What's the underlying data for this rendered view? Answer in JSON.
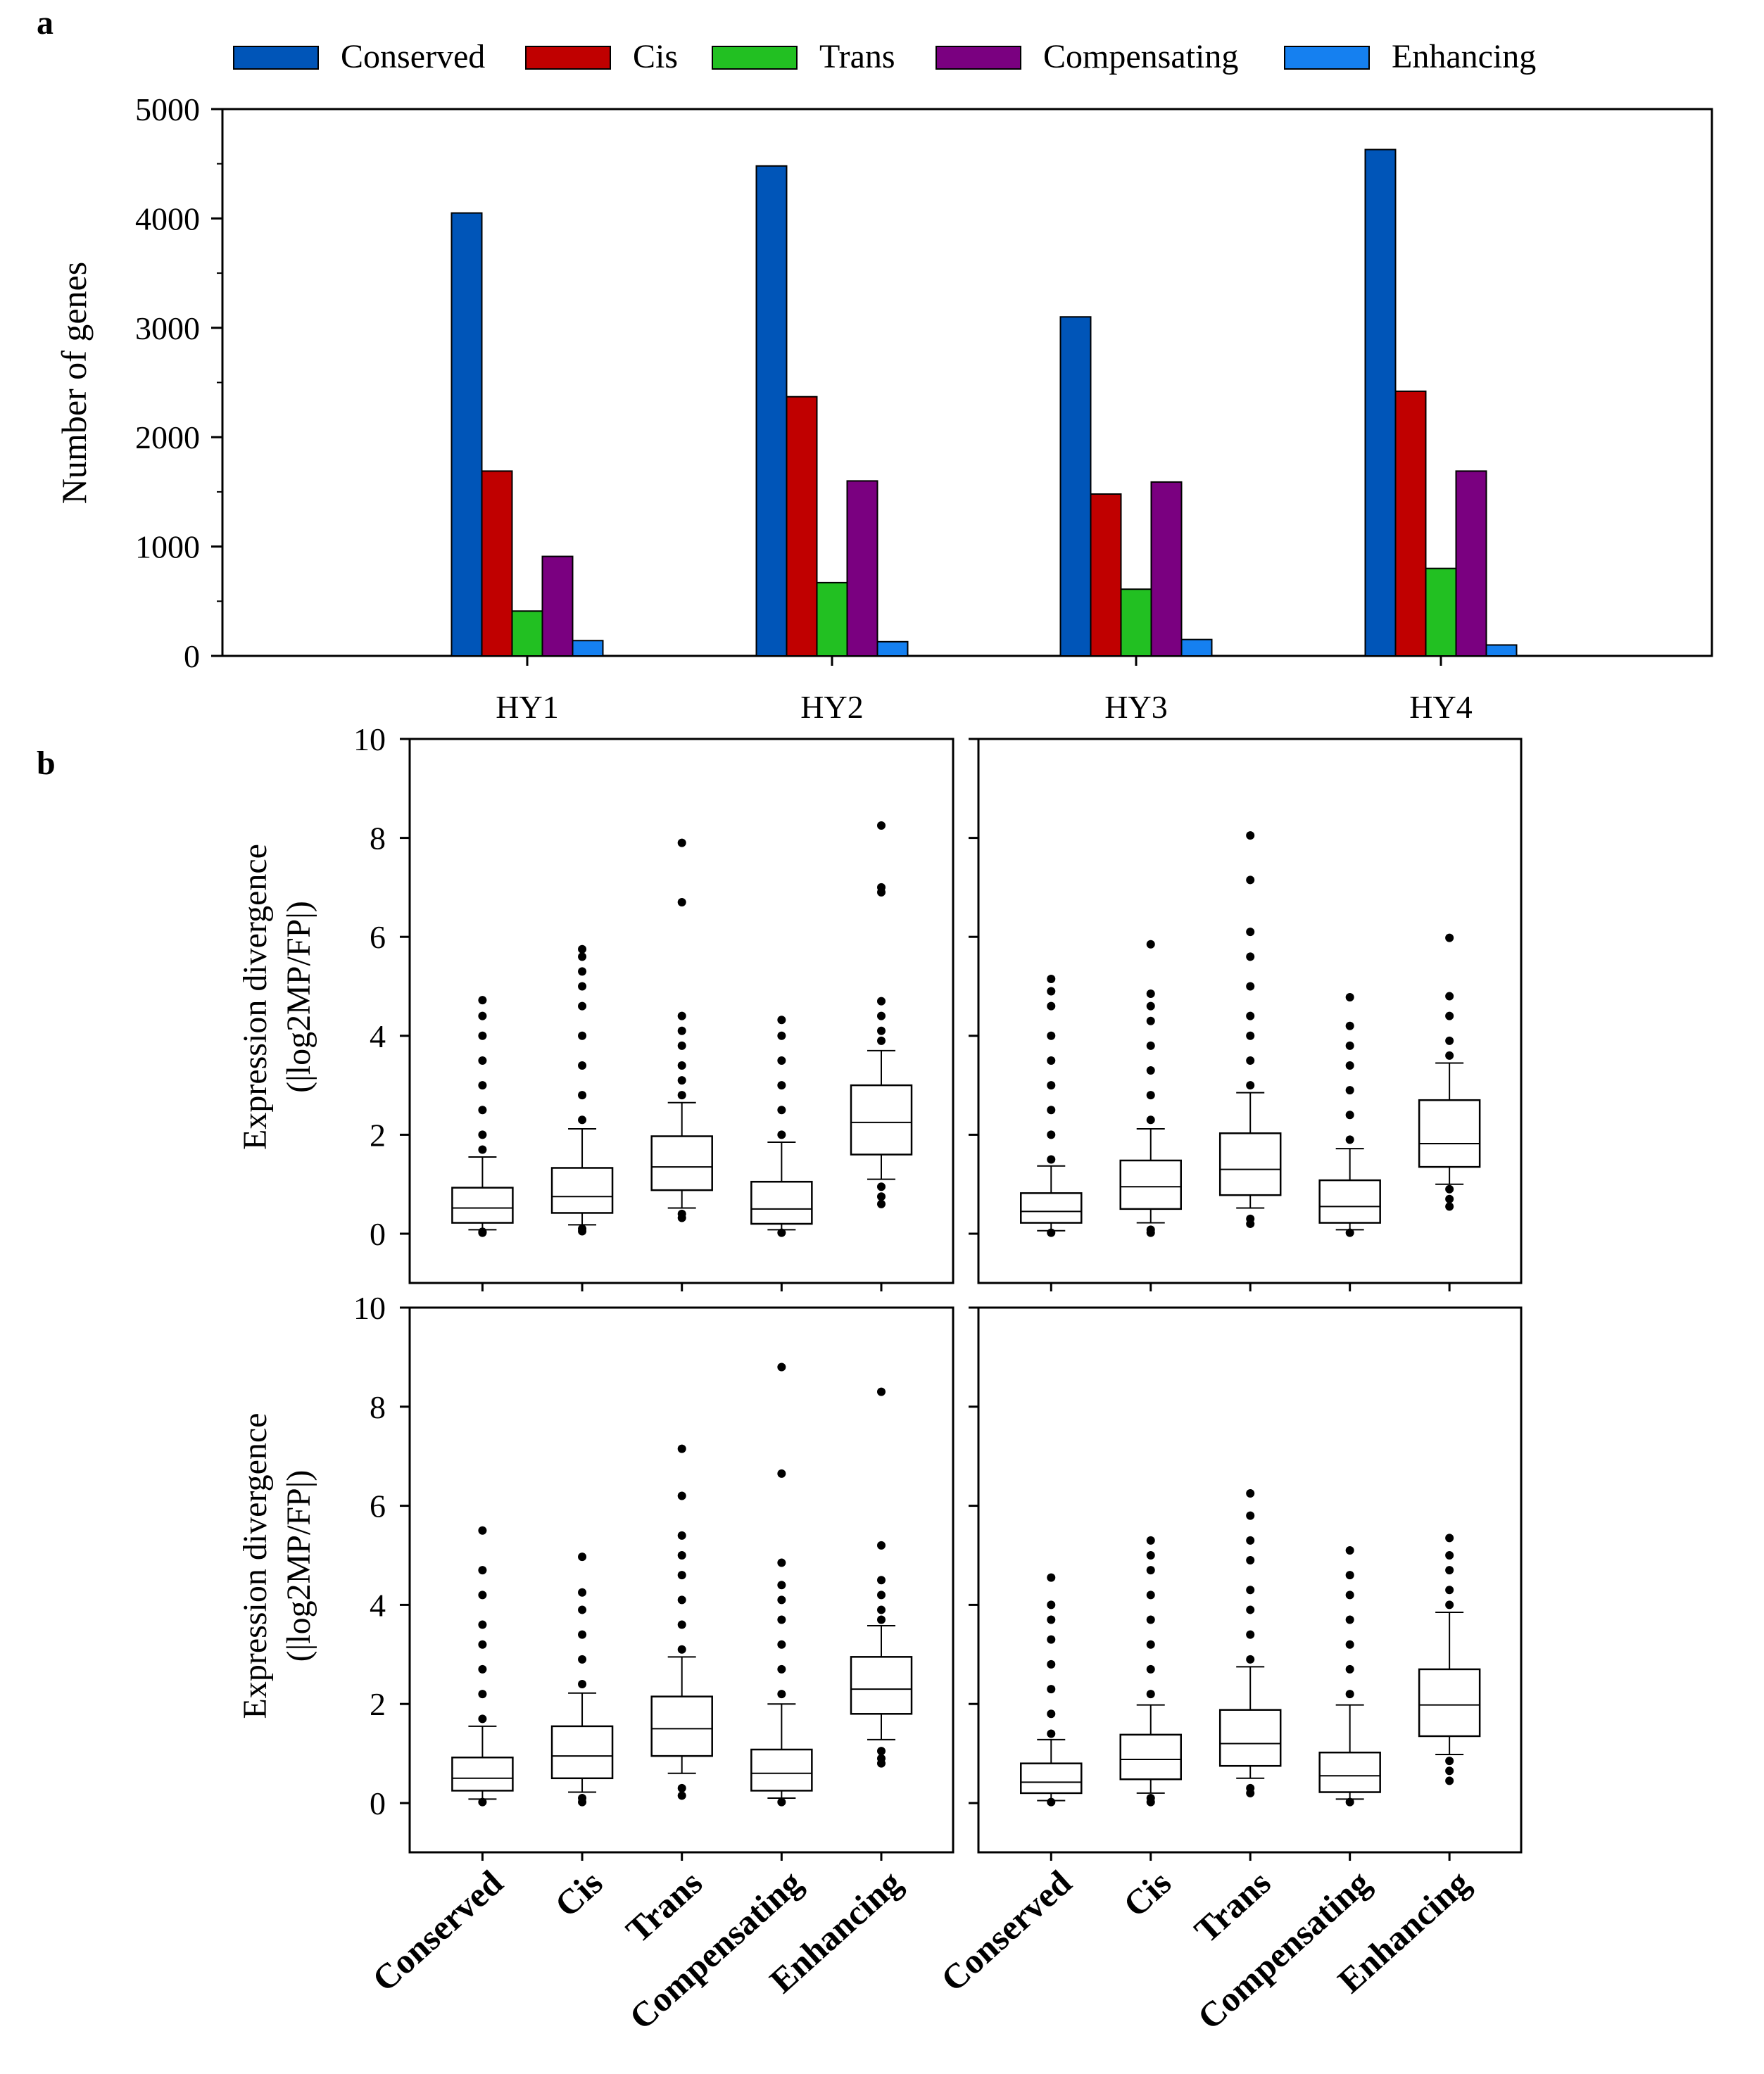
{
  "panel_a_label": "a",
  "panel_b_label": "b",
  "legend": [
    "Conserved",
    "Cis",
    "Trans",
    "Compensating",
    "Enhancing"
  ],
  "colors": {
    "Conserved": "#0055b8",
    "Cis": "#c00000",
    "Trans": "#22c022",
    "Compensating": "#7a0080",
    "Enhancing": "#1580f0"
  },
  "chart_data": [
    {
      "type": "bar",
      "title": "",
      "xlabel": "",
      "ylabel": "Number of genes",
      "categories": [
        "HY1",
        "HY2",
        "HY3",
        "HY4"
      ],
      "ylim": [
        0,
        5000
      ],
      "yticks": [
        0,
        1000,
        2000,
        3000,
        4000,
        5000
      ],
      "series": [
        {
          "name": "Conserved",
          "values": [
            4050,
            4480,
            3100,
            4630
          ]
        },
        {
          "name": "Cis",
          "values": [
            1690,
            2370,
            1480,
            2420
          ]
        },
        {
          "name": "Trans",
          "values": [
            410,
            670,
            610,
            800
          ]
        },
        {
          "name": "Compensating",
          "values": [
            910,
            1600,
            1590,
            1690
          ]
        },
        {
          "name": "Enhancing",
          "values": [
            140,
            130,
            150,
            100
          ]
        }
      ],
      "legend_position": "top"
    },
    {
      "type": "box",
      "ylabel": "Expression divergence (|log2MP/FP|)",
      "categories": [
        "Conserved",
        "Cis",
        "Trans",
        "Compensating",
        "Enhancing"
      ],
      "ylim": [
        0,
        10
      ],
      "yticks": [
        0,
        2,
        4,
        6,
        8,
        10
      ],
      "boxes": [
        {
          "q1": 0.22,
          "median": 0.52,
          "q3": 0.93,
          "lower_whisker": 0.08,
          "upper_whisker": 1.55,
          "outliers": [
            0.02,
            0.04,
            1.7,
            2.0,
            2.5,
            3.0,
            3.5,
            4.0,
            4.4,
            4.72
          ]
        },
        {
          "q1": 0.42,
          "median": 0.75,
          "q3": 1.33,
          "lower_whisker": 0.18,
          "upper_whisker": 2.12,
          "outliers": [
            0.05,
            0.1,
            2.3,
            2.8,
            3.4,
            4.0,
            4.6,
            5.0,
            5.3,
            5.6,
            5.75
          ]
        },
        {
          "q1": 0.88,
          "median": 1.35,
          "q3": 1.97,
          "lower_whisker": 0.52,
          "upper_whisker": 2.65,
          "outliers": [
            0.32,
            0.4,
            2.8,
            3.1,
            3.4,
            3.8,
            4.1,
            4.4,
            6.7,
            7.9
          ]
        },
        {
          "q1": 0.2,
          "median": 0.5,
          "q3": 1.05,
          "lower_whisker": 0.08,
          "upper_whisker": 1.85,
          "outliers": [
            0.02,
            2.0,
            2.5,
            3.0,
            3.5,
            4.0,
            4.32
          ]
        },
        {
          "q1": 1.6,
          "median": 2.25,
          "q3": 3.0,
          "lower_whisker": 1.1,
          "upper_whisker": 3.7,
          "outliers": [
            0.6,
            0.75,
            0.95,
            3.9,
            4.1,
            4.4,
            4.7,
            6.9,
            7.0,
            8.25
          ]
        }
      ]
    },
    {
      "type": "box",
      "categories": [
        "Conserved",
        "Cis",
        "Trans",
        "Compensating",
        "Enhancing"
      ],
      "ylim": [
        0,
        10
      ],
      "yticks": [
        0,
        2,
        4,
        6,
        8,
        10
      ],
      "boxes": [
        {
          "q1": 0.22,
          "median": 0.45,
          "q3": 0.82,
          "lower_whisker": 0.06,
          "upper_whisker": 1.37,
          "outliers": [
            0.02,
            1.5,
            2.0,
            2.5,
            3.0,
            3.5,
            4.0,
            4.6,
            4.9,
            5.15
          ]
        },
        {
          "q1": 0.5,
          "median": 0.95,
          "q3": 1.48,
          "lower_whisker": 0.22,
          "upper_whisker": 2.12,
          "outliers": [
            0.02,
            0.08,
            2.3,
            2.8,
            3.3,
            3.8,
            4.3,
            4.6,
            4.85,
            5.85
          ]
        },
        {
          "q1": 0.78,
          "median": 1.3,
          "q3": 2.03,
          "lower_whisker": 0.52,
          "upper_whisker": 2.85,
          "outliers": [
            0.2,
            0.3,
            3.0,
            3.5,
            4.0,
            4.4,
            5.0,
            5.6,
            6.1,
            7.15,
            8.05
          ]
        },
        {
          "q1": 0.22,
          "median": 0.55,
          "q3": 1.08,
          "lower_whisker": 0.08,
          "upper_whisker": 1.72,
          "outliers": [
            0.02,
            1.9,
            2.4,
            2.9,
            3.4,
            3.8,
            4.2,
            4.78
          ]
        },
        {
          "q1": 1.35,
          "median": 1.82,
          "q3": 2.7,
          "lower_whisker": 1.0,
          "upper_whisker": 3.45,
          "outliers": [
            0.55,
            0.7,
            0.9,
            3.6,
            3.9,
            4.4,
            4.8,
            5.98
          ]
        }
      ]
    },
    {
      "type": "box",
      "ylabel": "Expression divergence (|log2MP/FP|)",
      "categories": [
        "Conserved",
        "Cis",
        "Trans",
        "Compensating",
        "Enhancing"
      ],
      "ylim": [
        0,
        10
      ],
      "yticks": [
        0,
        2,
        4,
        6,
        8,
        10
      ],
      "boxes": [
        {
          "q1": 0.25,
          "median": 0.5,
          "q3": 0.92,
          "lower_whisker": 0.08,
          "upper_whisker": 1.55,
          "outliers": [
            0.02,
            1.7,
            2.2,
            2.7,
            3.2,
            3.6,
            4.2,
            4.7,
            5.5
          ]
        },
        {
          "q1": 0.5,
          "median": 0.95,
          "q3": 1.55,
          "lower_whisker": 0.22,
          "upper_whisker": 2.22,
          "outliers": [
            0.02,
            0.1,
            2.4,
            2.9,
            3.4,
            3.9,
            4.25,
            4.97
          ]
        },
        {
          "q1": 0.95,
          "median": 1.5,
          "q3": 2.15,
          "lower_whisker": 0.6,
          "upper_whisker": 2.95,
          "outliers": [
            0.15,
            0.3,
            3.1,
            3.6,
            4.1,
            4.6,
            5.0,
            5.4,
            6.2,
            7.15
          ]
        },
        {
          "q1": 0.25,
          "median": 0.6,
          "q3": 1.08,
          "lower_whisker": 0.1,
          "upper_whisker": 2.0,
          "outliers": [
            0.02,
            2.2,
            2.7,
            3.2,
            3.7,
            4.1,
            4.4,
            4.85,
            6.65,
            8.8
          ]
        },
        {
          "q1": 1.8,
          "median": 2.3,
          "q3": 2.95,
          "lower_whisker": 1.28,
          "upper_whisker": 3.58,
          "outliers": [
            0.8,
            0.9,
            1.05,
            3.7,
            3.9,
            4.2,
            4.5,
            5.2,
            8.3
          ]
        }
      ]
    },
    {
      "type": "box",
      "categories": [
        "Conserved",
        "Cis",
        "Trans",
        "Compensating",
        "Enhancing"
      ],
      "ylim": [
        0,
        10
      ],
      "yticks": [
        0,
        2,
        4,
        6,
        8,
        10
      ],
      "boxes": [
        {
          "q1": 0.2,
          "median": 0.42,
          "q3": 0.8,
          "lower_whisker": 0.05,
          "upper_whisker": 1.28,
          "outliers": [
            0.02,
            1.4,
            1.8,
            2.3,
            2.8,
            3.3,
            3.7,
            4.0,
            4.55
          ]
        },
        {
          "q1": 0.48,
          "median": 0.88,
          "q3": 1.38,
          "lower_whisker": 0.2,
          "upper_whisker": 1.98,
          "outliers": [
            0.02,
            0.1,
            2.2,
            2.7,
            3.2,
            3.7,
            4.2,
            4.7,
            5.0,
            5.3
          ]
        },
        {
          "q1": 0.75,
          "median": 1.2,
          "q3": 1.88,
          "lower_whisker": 0.5,
          "upper_whisker": 2.75,
          "outliers": [
            0.2,
            0.3,
            2.9,
            3.4,
            3.9,
            4.3,
            4.9,
            5.3,
            5.8,
            6.25
          ]
        },
        {
          "q1": 0.22,
          "median": 0.55,
          "q3": 1.02,
          "lower_whisker": 0.08,
          "upper_whisker": 1.98,
          "outliers": [
            0.02,
            2.2,
            2.7,
            3.2,
            3.7,
            4.2,
            4.6,
            5.1
          ]
        },
        {
          "q1": 1.35,
          "median": 1.98,
          "q3": 2.7,
          "lower_whisker": 0.98,
          "upper_whisker": 3.85,
          "outliers": [
            0.45,
            0.65,
            0.85,
            4.0,
            4.3,
            4.7,
            5.0,
            5.35
          ]
        }
      ]
    }
  ]
}
